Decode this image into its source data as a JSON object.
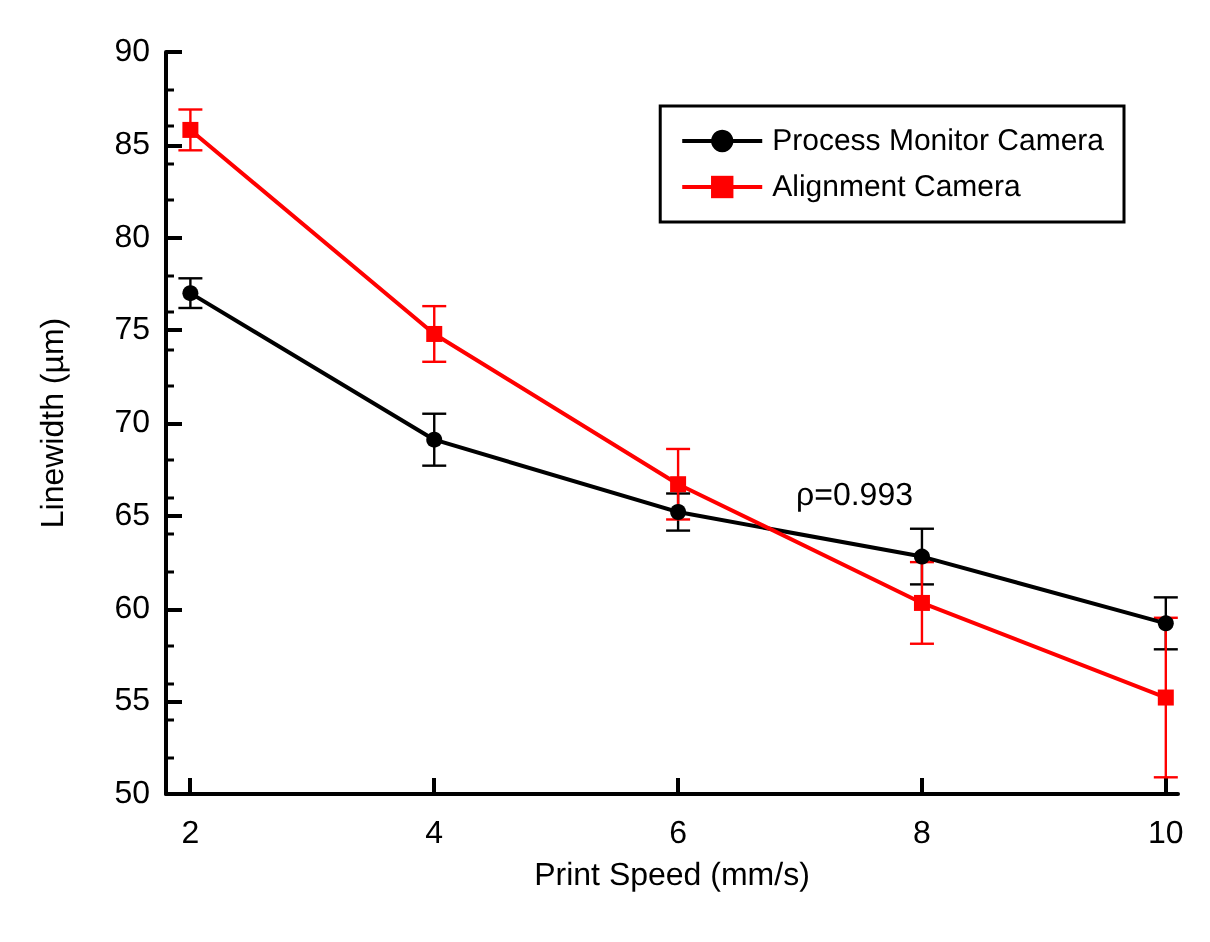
{
  "chart_data": {
    "type": "line",
    "xlabel": "Print Speed (mm/s)",
    "ylabel": "Linewidth (µm)",
    "x": [
      2,
      4,
      6,
      8,
      10
    ],
    "series": [
      {
        "name": "Process Monitor Camera",
        "color": "#000000",
        "marker": "circle",
        "values": [
          77.0,
          69.1,
          65.2,
          62.8,
          59.2
        ],
        "errors": [
          0.8,
          1.4,
          1.0,
          1.5,
          1.4
        ]
      },
      {
        "name": "Alignment Camera",
        "color": "#ff0000",
        "marker": "square",
        "values": [
          85.8,
          74.8,
          66.7,
          60.3,
          55.2
        ],
        "errors": [
          1.1,
          1.5,
          1.9,
          2.2,
          4.3
        ]
      }
    ],
    "xlim": [
      1.8,
      10.1
    ],
    "xticks": [
      2,
      4,
      6,
      8,
      10
    ],
    "ylim": [
      50,
      90
    ],
    "yticks": [
      50,
      55,
      60,
      65,
      70,
      75,
      80,
      85,
      90
    ],
    "annotations": [
      "ρ=0.993"
    ],
    "legend": "top right",
    "grid": false,
    "line_style": "solid"
  }
}
